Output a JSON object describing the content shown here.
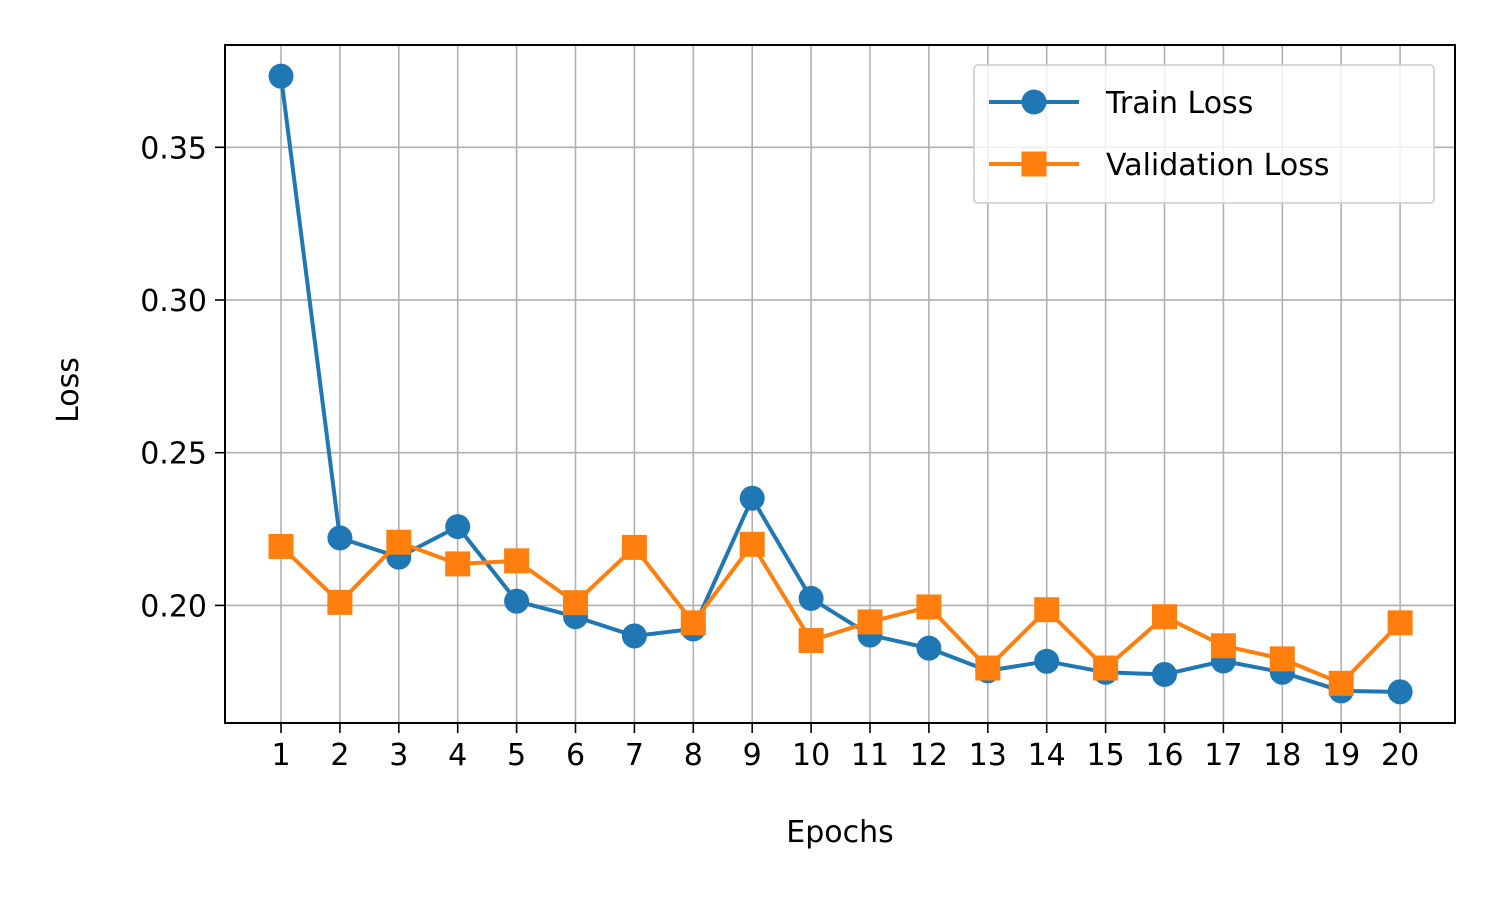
{
  "chart_data": {
    "type": "line",
    "title": "",
    "xlabel": "Epochs",
    "ylabel": "Loss",
    "categories": [
      "1",
      "2",
      "3",
      "4",
      "5",
      "6",
      "7",
      "8",
      "9",
      "10",
      "11",
      "12",
      "13",
      "14",
      "15",
      "16",
      "17",
      "18",
      "19",
      "20"
    ],
    "yticks": [
      0.2,
      0.25,
      0.3,
      0.35
    ],
    "ytick_labels": [
      "0.20",
      "0.25",
      "0.30",
      "0.35"
    ],
    "ylim": [
      0.1615,
      0.3835
    ],
    "grid": true,
    "legend_position": "upper right",
    "series": [
      {
        "name": "Train Loss",
        "color": "#1f77b4",
        "marker": "circle",
        "values": [
          0.3733,
          0.2221,
          0.2158,
          0.2258,
          0.2014,
          0.1963,
          0.19,
          0.1923,
          0.2351,
          0.2023,
          0.1903,
          0.186,
          0.1786,
          0.1817,
          0.1781,
          0.1774,
          0.1818,
          0.1781,
          0.172,
          0.1717
        ]
      },
      {
        "name": "Validation Loss",
        "color": "#ff7f0e",
        "marker": "square",
        "values": [
          0.2193,
          0.201,
          0.2207,
          0.2136,
          0.2146,
          0.2009,
          0.219,
          0.1943,
          0.22,
          0.1885,
          0.1946,
          0.1995,
          0.1795,
          0.1986,
          0.1795,
          0.1963,
          0.1868,
          0.1825,
          0.1745,
          0.1943
        ]
      }
    ]
  }
}
